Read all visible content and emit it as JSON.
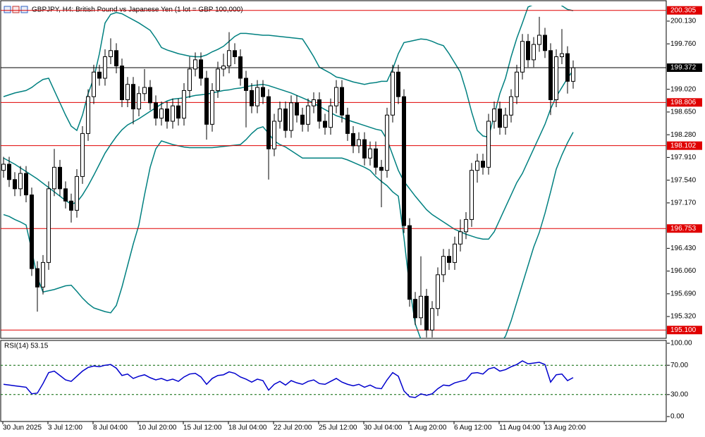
{
  "chart_data": [
    {
      "type": "candlestick",
      "title": "GBPJPY, H4:  British Pound vs Japanese Yen (1 lot = GBP 100,000)",
      "categories": [
        "30 Jun 2025",
        null,
        null,
        null,
        null,
        null,
        null,
        null,
        "3 Jul 12:00",
        null,
        null,
        null,
        null,
        null,
        null,
        null,
        "8 Jul 04:00",
        null,
        null,
        null,
        null,
        null,
        null,
        null,
        "10 Jul 20:00",
        null,
        null,
        null,
        null,
        null,
        null,
        null,
        "15 Jul 12:00",
        null,
        null,
        null,
        null,
        null,
        null,
        null,
        "18 Jul 04:00",
        null,
        null,
        null,
        null,
        null,
        null,
        null,
        "22 Jul 20:00",
        null,
        null,
        null,
        null,
        null,
        null,
        null,
        "25 Jul 12:00",
        null,
        null,
        null,
        null,
        null,
        null,
        null,
        "30 Jul 04:00",
        null,
        null,
        null,
        null,
        null,
        null,
        null,
        "1 Aug 20:00",
        null,
        null,
        null,
        null,
        null,
        null,
        null,
        "6 Aug 12:00",
        null,
        null,
        null,
        null,
        null,
        null,
        null,
        "11 Aug 04:00",
        null,
        null,
        null,
        null,
        null,
        null,
        null,
        "13 Aug 20:00",
        null,
        null,
        null,
        null,
        null
      ],
      "open": [
        197.7,
        197.8,
        197.55,
        197.4,
        197.65,
        197.3,
        196.1,
        195.8,
        196.2,
        197.4,
        197.75,
        197.4,
        197.2,
        197.05,
        197.6,
        198.3,
        198.9,
        199.3,
        199.2,
        199.55,
        199.65,
        199.4,
        198.85,
        199.1,
        198.7,
        198.95,
        199.05,
        198.8,
        198.55,
        198.7,
        198.5,
        198.75,
        198.55,
        199.0,
        199.35,
        199.5,
        199.2,
        198.45,
        199.0,
        199.35,
        199.4,
        199.65,
        199.55,
        199.2,
        199.0,
        198.75,
        199.05,
        198.9,
        198.05,
        198.5,
        198.7,
        198.35,
        198.8,
        198.6,
        198.45,
        198.75,
        198.85,
        198.5,
        198.4,
        198.75,
        199.05,
        198.6,
        198.3,
        198.1,
        198.2,
        197.9,
        198.05,
        197.75,
        197.7,
        198.6,
        199.3,
        198.9,
        196.8,
        195.6,
        195.3,
        195.65,
        195.1,
        195.45,
        196.0,
        196.3,
        196.2,
        196.5,
        196.7,
        196.9,
        197.7,
        197.85,
        197.75,
        198.5,
        198.7,
        198.4,
        198.6,
        198.9,
        199.3,
        199.8,
        199.5,
        199.75,
        199.9,
        199.65,
        198.85,
        199.55,
        199.6,
        199.15
      ],
      "high": [
        197.92,
        197.92,
        197.67,
        197.77,
        197.77,
        197.42,
        196.22,
        196.32,
        197.52,
        198.05,
        197.87,
        197.52,
        197.32,
        197.72,
        198.42,
        199.02,
        199.42,
        199.42,
        199.67,
        199.85,
        199.77,
        199.52,
        199.22,
        199.22,
        199.07,
        199.35,
        199.17,
        198.92,
        198.82,
        198.82,
        198.87,
        198.87,
        199.12,
        199.55,
        199.62,
        199.62,
        199.32,
        199.12,
        199.47,
        199.6,
        199.95,
        199.77,
        199.67,
        199.32,
        199.12,
        199.17,
        199.17,
        199.02,
        198.62,
        198.82,
        198.82,
        198.92,
        198.92,
        198.72,
        198.87,
        198.97,
        198.97,
        198.62,
        198.87,
        199.17,
        199.17,
        198.72,
        198.42,
        198.32,
        198.32,
        198.17,
        198.17,
        197.87,
        198.72,
        199.42,
        199.42,
        199.02,
        196.92,
        195.72,
        196.3,
        195.77,
        195.57,
        196.12,
        196.42,
        196.42,
        196.62,
        196.9,
        197.02,
        197.82,
        197.97,
        197.97,
        198.62,
        198.82,
        198.82,
        198.72,
        199.02,
        199.42,
        199.92,
        199.92,
        199.87,
        200.2,
        200.02,
        199.77,
        199.67,
        200.0,
        199.72,
        199.49
      ],
      "low": [
        197.58,
        197.43,
        197.28,
        197.28,
        197.18,
        195.98,
        195.4,
        195.68,
        196.08,
        197.28,
        197.28,
        197.08,
        196.85,
        196.93,
        197.48,
        198.18,
        198.78,
        199.08,
        199.08,
        199.43,
        199.28,
        198.73,
        198.73,
        198.45,
        198.58,
        198.83,
        198.68,
        198.43,
        198.43,
        198.38,
        198.38,
        198.43,
        198.43,
        198.88,
        199.23,
        199.08,
        198.2,
        198.33,
        198.88,
        199.23,
        199.28,
        199.43,
        199.08,
        198.4,
        198.63,
        198.63,
        198.78,
        197.55,
        197.93,
        198.38,
        198.23,
        198.23,
        198.48,
        198.33,
        198.33,
        198.63,
        198.38,
        198.28,
        198.28,
        198.63,
        198.48,
        198.18,
        197.98,
        197.98,
        197.78,
        197.78,
        197.63,
        197.1,
        197.58,
        198.48,
        198.78,
        196.68,
        195.48,
        195.18,
        195.18,
        194.98,
        194.98,
        195.33,
        195.88,
        196.08,
        196.08,
        196.38,
        196.58,
        196.78,
        197.5,
        197.63,
        197.63,
        198.38,
        198.28,
        198.28,
        198.48,
        198.78,
        199.18,
        199.38,
        199.38,
        199.63,
        199.53,
        198.6,
        198.73,
        199.43,
        198.95,
        199.03
      ],
      "close": [
        197.8,
        197.55,
        197.4,
        197.65,
        197.3,
        196.1,
        195.8,
        196.2,
        197.4,
        197.75,
        197.4,
        197.2,
        197.05,
        197.6,
        198.3,
        198.9,
        199.3,
        199.2,
        199.55,
        199.65,
        199.4,
        198.85,
        199.1,
        198.7,
        198.95,
        199.05,
        198.8,
        198.55,
        198.7,
        198.5,
        198.75,
        198.55,
        199.0,
        199.35,
        199.5,
        199.2,
        198.45,
        199.0,
        199.35,
        199.4,
        199.65,
        199.55,
        199.2,
        199.0,
        198.75,
        199.05,
        198.9,
        198.05,
        198.5,
        198.7,
        198.35,
        198.8,
        198.6,
        198.45,
        198.75,
        198.85,
        198.5,
        198.4,
        198.75,
        199.05,
        198.6,
        198.3,
        198.1,
        198.2,
        197.9,
        198.05,
        197.75,
        197.7,
        198.6,
        199.3,
        198.9,
        196.8,
        195.6,
        195.3,
        195.65,
        195.1,
        195.45,
        196.0,
        196.3,
        196.2,
        196.5,
        196.7,
        196.9,
        197.7,
        197.85,
        197.75,
        198.5,
        198.7,
        198.4,
        198.6,
        198.9,
        199.3,
        199.8,
        199.5,
        199.75,
        199.9,
        199.65,
        198.85,
        199.55,
        199.6,
        199.15,
        199.37
      ],
      "up_color": "#ffffff",
      "down_color": "#000000",
      "outline_color": "#000000",
      "bollinger": {
        "color": "#008080",
        "upper": [
          198.9,
          198.93,
          198.96,
          198.98,
          199.0,
          199.05,
          199.12,
          199.18,
          199.2,
          199.0,
          198.8,
          198.6,
          198.42,
          198.35,
          198.6,
          198.95,
          199.2,
          199.6,
          200.1,
          200.24,
          200.27,
          200.25,
          200.2,
          200.15,
          200.1,
          200.04,
          199.98,
          199.85,
          199.7,
          199.66,
          199.63,
          199.6,
          199.58,
          199.56,
          199.55,
          199.55,
          199.58,
          199.63,
          199.67,
          199.72,
          199.8,
          199.88,
          199.93,
          199.93,
          199.92,
          199.91,
          199.9,
          199.9,
          199.89,
          199.88,
          199.87,
          199.86,
          199.85,
          199.84,
          199.7,
          199.55,
          199.38,
          199.33,
          199.28,
          199.22,
          199.2,
          199.17,
          199.14,
          199.12,
          199.1,
          199.12,
          199.13,
          199.15,
          199.15,
          199.35,
          199.6,
          199.78,
          199.8,
          199.82,
          199.84,
          199.83,
          199.8,
          199.76,
          199.73,
          199.6,
          199.45,
          199.3,
          199.0,
          198.65,
          198.35,
          198.26,
          198.24,
          198.6,
          198.95,
          199.2,
          199.55,
          199.85,
          200.1,
          200.36,
          200.4,
          200.45,
          200.48,
          200.48,
          200.45,
          200.38,
          200.32,
          200.3
        ],
        "middle": [
          197.9,
          197.85,
          197.8,
          197.74,
          197.68,
          197.62,
          197.56,
          197.49,
          197.42,
          197.35,
          197.28,
          197.21,
          197.15,
          197.18,
          197.3,
          197.45,
          197.62,
          197.8,
          197.98,
          198.12,
          198.25,
          198.36,
          198.44,
          198.49,
          198.54,
          198.6,
          198.66,
          198.72,
          198.78,
          198.83,
          198.86,
          198.87,
          198.88,
          198.9,
          198.92,
          198.93,
          198.94,
          198.96,
          198.98,
          199.0,
          199.01,
          199.03,
          199.04,
          199.06,
          199.08,
          199.09,
          199.1,
          199.08,
          199.05,
          199.02,
          198.99,
          198.96,
          198.92,
          198.88,
          198.84,
          198.79,
          198.74,
          198.69,
          198.64,
          198.59,
          198.56,
          198.52,
          198.49,
          198.46,
          198.43,
          198.4,
          198.37,
          198.35,
          198.2,
          197.95,
          197.7,
          197.52,
          197.4,
          197.28,
          197.17,
          197.06,
          196.98,
          196.92,
          196.86,
          196.8,
          196.74,
          196.7,
          196.66,
          196.63,
          196.6,
          196.58,
          196.58,
          196.7,
          196.9,
          197.1,
          197.3,
          197.5,
          197.65,
          197.85,
          198.05,
          198.25,
          198.45,
          198.7,
          198.9,
          199.05,
          199.2,
          199.33
        ],
        "lower": [
          196.98,
          196.95,
          196.9,
          196.86,
          196.81,
          196.4,
          195.95,
          195.72,
          195.74,
          195.76,
          195.79,
          195.82,
          195.83,
          195.73,
          195.62,
          195.53,
          195.46,
          195.43,
          195.4,
          195.38,
          195.5,
          195.8,
          196.15,
          196.5,
          196.81,
          197.3,
          197.75,
          198.05,
          198.18,
          198.15,
          198.12,
          198.1,
          198.08,
          198.07,
          198.07,
          198.07,
          198.07,
          198.07,
          198.08,
          198.09,
          198.1,
          198.11,
          198.12,
          198.2,
          198.3,
          198.38,
          198.41,
          198.3,
          198.18,
          198.12,
          198.08,
          198.02,
          197.96,
          197.9,
          197.9,
          197.9,
          197.9,
          197.9,
          197.9,
          197.9,
          197.9,
          197.87,
          197.83,
          197.79,
          197.75,
          197.7,
          197.6,
          197.52,
          197.45,
          197.35,
          197.28,
          196.6,
          195.8,
          195.2,
          194.95,
          194.75,
          194.6,
          194.5,
          194.45,
          194.4,
          194.4,
          194.4,
          194.42,
          194.45,
          194.5,
          194.57,
          194.65,
          194.75,
          194.88,
          195.0,
          195.25,
          195.55,
          195.85,
          196.15,
          196.45,
          196.69,
          197.0,
          197.35,
          197.72,
          197.95,
          198.15,
          198.32
        ]
      },
      "ylim": [
        194.965,
        200.382
      ],
      "yticks": [
        {
          "value": 200.13,
          "label": "200.130"
        },
        {
          "value": 199.76,
          "label": "199.760"
        },
        {
          "value": 199.02,
          "label": "199.020"
        },
        {
          "value": 198.65,
          "label": "198.650"
        },
        {
          "value": 198.28,
          "label": "198.280"
        },
        {
          "value": 197.91,
          "label": "197.910"
        },
        {
          "value": 197.54,
          "label": "197.540"
        },
        {
          "value": 197.17,
          "label": "197.170"
        },
        {
          "value": 196.43,
          "label": "196.430"
        },
        {
          "value": 196.06,
          "label": "196.060"
        },
        {
          "value": 195.69,
          "label": "195.690"
        },
        {
          "value": 195.32,
          "label": "195.320"
        }
      ],
      "levels": [
        {
          "value": 200.305,
          "label": "200.305"
        },
        {
          "value": 198.806,
          "label": "198.806"
        },
        {
          "value": 198.102,
          "label": "198.102"
        },
        {
          "value": 196.753,
          "label": "196.753"
        },
        {
          "value": 195.1,
          "label": "195.100"
        }
      ],
      "level_color": "#e00000",
      "current_price": {
        "value": 199.372,
        "label": "199.372"
      }
    },
    {
      "type": "line",
      "title": "RSI(14) 53.15",
      "color": "#0000cd",
      "values": [
        44,
        43,
        42,
        41,
        40,
        31,
        32,
        45,
        60,
        62,
        56,
        50,
        48,
        55,
        62,
        67,
        69,
        68,
        70,
        71,
        66,
        56,
        58,
        52,
        55,
        57,
        53,
        50,
        52,
        49,
        51,
        48,
        54,
        58,
        59,
        54,
        44,
        52,
        56,
        57,
        61,
        59,
        54,
        51,
        47,
        51,
        49,
        36,
        44,
        48,
        43,
        49,
        46,
        44,
        48,
        50,
        45,
        44,
        48,
        52,
        47,
        44,
        42,
        44,
        40,
        43,
        39,
        38,
        50,
        60,
        55,
        35,
        27,
        26,
        31,
        29,
        31,
        38,
        43,
        42,
        46,
        48,
        50,
        59,
        60,
        58,
        65,
        67,
        62,
        64,
        68,
        71,
        76,
        72,
        73,
        74,
        71,
        47,
        57,
        58,
        49,
        53.15
      ],
      "ylim": [
        0,
        100
      ],
      "yticks": [
        {
          "value": 100,
          "label": "100.00"
        },
        {
          "value": 70,
          "label": "70.00"
        },
        {
          "value": 30,
          "label": "30.00"
        },
        {
          "value": 0,
          "label": "0.00"
        }
      ],
      "levels": [
        70,
        30
      ]
    }
  ]
}
